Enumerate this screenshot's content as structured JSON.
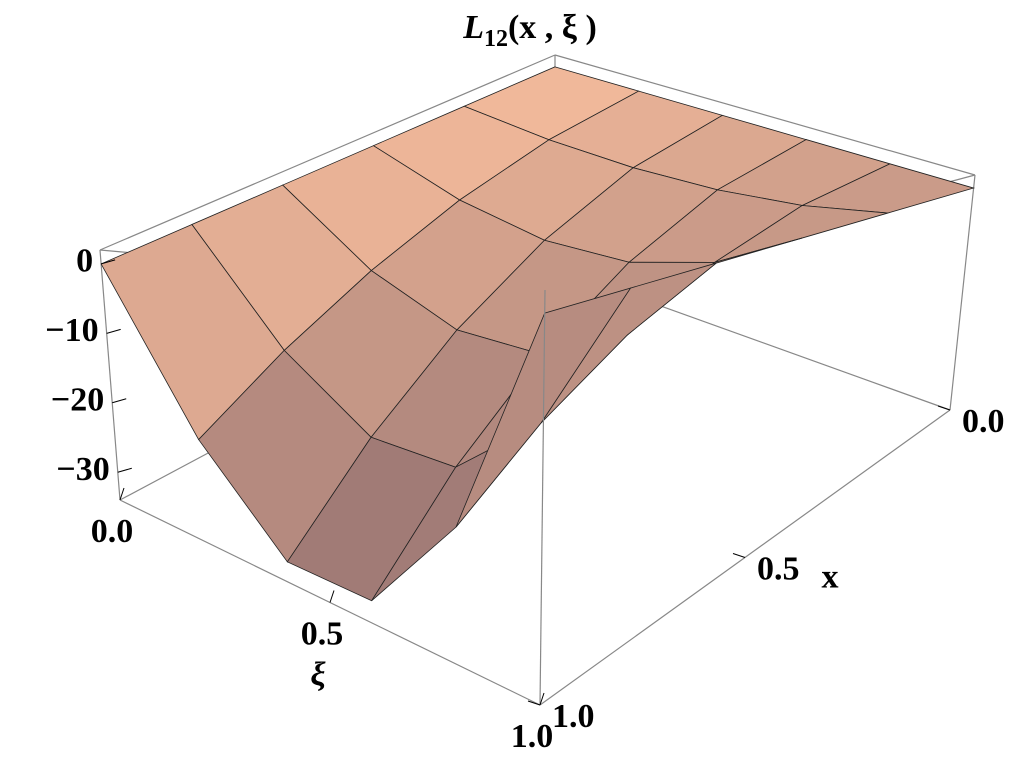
{
  "chart_data": {
    "type": "surface3d",
    "title_main": "L",
    "title_sub": "12",
    "title_args": "(x , ξ )",
    "x_label": "x",
    "xi_label": "ξ",
    "xi": [
      0,
      0.2,
      0.4,
      0.6,
      0.8,
      1
    ],
    "x": [
      0,
      0.2,
      0.4,
      0.6,
      0.8,
      1
    ],
    "z": [
      [
        0,
        0,
        0,
        0,
        0,
        0
      ],
      [
        0,
        -1.9,
        -5.3,
        -9.8,
        -15.1,
        -21.1
      ],
      [
        0,
        -2.8,
        -8.0,
        -14.7,
        -22.7,
        -31.7
      ],
      [
        0,
        -2.8,
        -8.0,
        -14.7,
        -22.7,
        -31.7
      ],
      [
        0,
        -1.9,
        -5.3,
        -9.8,
        -15.1,
        -21.1
      ],
      [
        0,
        0,
        0,
        0,
        0,
        0
      ]
    ],
    "xilim": [
      0,
      1
    ],
    "xlim": [
      0,
      1
    ],
    "zlim": [
      -34,
      2
    ],
    "xiticks": [
      {
        "value": 0,
        "label": "0.0"
      },
      0.5,
      {
        "value": 1,
        "label": "1.0"
      }
    ],
    "xticks": [
      {
        "value": 0,
        "label": "0.0"
      },
      0.5,
      {
        "value": 1,
        "label": "1.0"
      }
    ],
    "zticks": [
      0,
      {
        "value": -10,
        "label": "−10"
      },
      {
        "value": -20,
        "label": "−20"
      },
      {
        "value": -30,
        "label": "−30"
      }
    ],
    "color": "#f6bc9c",
    "shade_color": "#6e5560"
  }
}
